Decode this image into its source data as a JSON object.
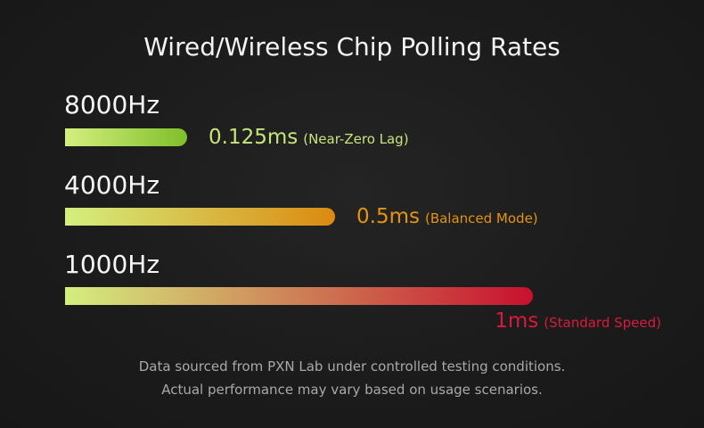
{
  "chart_data": {
    "type": "bar",
    "title": "Wired/Wireless Chip Polling Rates",
    "orientation": "horizontal",
    "xlim": [
      0,
      1
    ],
    "bars": [
      {
        "category": "8000Hz",
        "value": 0.125,
        "value_label": "0.125ms",
        "note": "(Near-Zero Lag)",
        "color_start": "#d4ef7e",
        "color_end": "#7fbf2a",
        "text_color": "#c6e57b"
      },
      {
        "category": "4000Hz",
        "value": 0.5,
        "value_label": "0.5ms",
        "note": "(Balanced Mode)",
        "color_start": "#d4ef7e",
        "color_end": "#db8a10",
        "text_color": "#e4940f"
      },
      {
        "category": "1000Hz",
        "value": 1,
        "value_label": "1ms",
        "note": "(Standard Speed)",
        "color_start": "#d4ef7e",
        "color_end": "#c8102e",
        "text_color": "#d91a3c"
      }
    ]
  },
  "footer": {
    "line1": "Data sourced from PXN Lab under controlled testing conditions.",
    "line2": "Actual performance may vary based on usage scenarios."
  },
  "colors": {
    "background": "#1c1c1c",
    "title": "#f4f4f4",
    "footer": "#a9a9a9"
  }
}
